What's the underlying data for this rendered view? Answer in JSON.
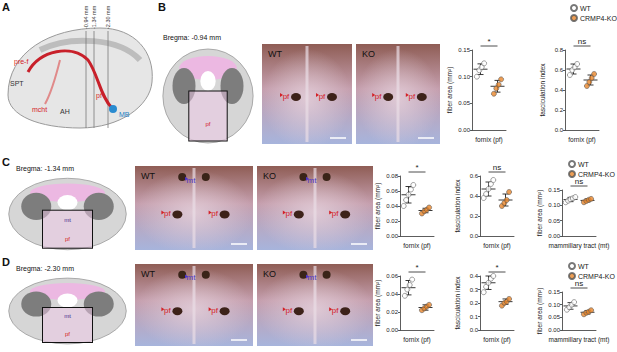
{
  "figure": {
    "panel_a": {
      "letter": "A",
      "sections": [
        "-0.94 mm",
        "-1.34 mm",
        "-2.30 mm"
      ],
      "labels": [
        {
          "text": "pre-f",
          "color": "#d42027"
        },
        {
          "text": "SPT",
          "color": "#333333"
        },
        {
          "text": "mcht",
          "color": "#d42027"
        },
        {
          "text": "AH",
          "color": "#333333"
        },
        {
          "text": "pf",
          "color": "#d42027"
        },
        {
          "text": "MB",
          "color": "#1f7fc4"
        }
      ]
    },
    "rows": [
      {
        "letter": "B",
        "bregma": "Bregma: -0.94 mm",
        "schematic_marks": [
          {
            "text": "pf",
            "color": "#d42027"
          }
        ],
        "images": [
          {
            "label": "WT",
            "marks": [
              {
                "text": "pf",
                "color": "#d42027"
              },
              {
                "text": "pf",
                "color": "#d42027"
              }
            ]
          },
          {
            "label": "KO",
            "marks": [
              {
                "text": "pf",
                "color": "#d42027"
              },
              {
                "text": "pf",
                "color": "#d42027"
              }
            ]
          }
        ]
      },
      {
        "letter": "C",
        "bregma": "Bregma: -1.34 mm",
        "schematic_marks": [
          {
            "text": "mt",
            "color": "#3b2a8c"
          },
          {
            "text": "pf",
            "color": "#d42027"
          }
        ],
        "images": [
          {
            "label": "WT",
            "marks": [
              {
                "text": "mt",
                "color": "#4b34c8"
              },
              {
                "text": "pf",
                "color": "#d42027"
              },
              {
                "text": "pf",
                "color": "#d42027"
              }
            ]
          },
          {
            "label": "KO",
            "marks": [
              {
                "text": "mt",
                "color": "#4b34c8"
              },
              {
                "text": "pf",
                "color": "#d42027"
              },
              {
                "text": "pf",
                "color": "#d42027"
              }
            ]
          }
        ]
      },
      {
        "letter": "D",
        "bregma": "Bregma: -2.30 mm",
        "schematic_marks": [
          {
            "text": "mt",
            "color": "#3b2a8c"
          },
          {
            "text": "pf",
            "color": "#d42027"
          }
        ],
        "images": [
          {
            "label": "WT",
            "marks": [
              {
                "text": "mt",
                "color": "#4b34c8"
              },
              {
                "text": "pf",
                "color": "#d42027"
              },
              {
                "text": "pf",
                "color": "#d42027"
              }
            ]
          },
          {
            "label": "KO",
            "marks": [
              {
                "text": "mt",
                "color": "#4b34c8"
              },
              {
                "text": "pf",
                "color": "#d42027"
              },
              {
                "text": "pf",
                "color": "#d42027"
              }
            ]
          }
        ]
      }
    ]
  },
  "chart_data": [
    {
      "type": "scatter",
      "xlabel": "fornix (pf)",
      "ylabel": "fiber area (mm²)",
      "annotation": "*",
      "ylim": [
        0,
        0.15
      ],
      "yticks": [
        {
          "value": 0,
          "label": "0.00"
        },
        0.05,
        {
          "value": 0.1,
          "label": "0.10"
        },
        0.15
      ],
      "grid": false,
      "tick_labels": "y",
      "marker": "circle",
      "series": [
        {
          "name": "WT",
          "color": "#ffffff",
          "values": [
            0.1,
            0.112,
            0.118,
            0.125
          ],
          "mean": 0.114,
          "sd": 0.01
        },
        {
          "name": "CRMP4-KO",
          "color": "#e8862b",
          "values": [
            0.068,
            0.078,
            0.085,
            0.095
          ],
          "mean": 0.082,
          "sd": 0.011
        }
      ]
    },
    {
      "type": "scatter",
      "xlabel": "fornix (pf)",
      "ylabel": "fasciculation index",
      "annotation": "ns",
      "ylim": [
        0,
        0.8
      ],
      "yticks": [
        {
          "value": 0,
          "label": "0.0"
        },
        0.2,
        0.4,
        0.6,
        0.8
      ],
      "grid": false,
      "tick_labels": "y",
      "marker": "circle",
      "legend": "upper right",
      "series": [
        {
          "name": "WT",
          "color": "#ffffff",
          "values": [
            0.55,
            0.6,
            0.63,
            0.66
          ],
          "mean": 0.61,
          "sd": 0.05
        },
        {
          "name": "CRMP4-KO",
          "color": "#e8862b",
          "values": [
            0.44,
            0.48,
            0.52,
            0.56
          ],
          "mean": 0.5,
          "sd": 0.05
        }
      ]
    },
    {
      "type": "scatter",
      "xlabel": "fornix (pf)",
      "ylabel": "fiber area (mm²)",
      "annotation": "*",
      "ylim": [
        0,
        0.08
      ],
      "yticks": [
        {
          "value": 0,
          "label": "0.00"
        },
        0.02,
        0.04,
        0.06,
        0.08
      ],
      "grid": false,
      "tick_labels": "y",
      "marker": "circle",
      "series": [
        {
          "name": "WT",
          "color": "#ffffff",
          "values": [
            0.04,
            0.048,
            0.055,
            0.062,
            0.068
          ],
          "mean": 0.055,
          "sd": 0.011
        },
        {
          "name": "CRMP4-KO",
          "color": "#e8862b",
          "values": [
            0.03,
            0.033,
            0.035,
            0.038
          ],
          "mean": 0.034,
          "sd": 0.003
        }
      ]
    },
    {
      "type": "scatter",
      "xlabel": "fornix (pf)",
      "ylabel": "fasciculation index",
      "annotation": "ns",
      "ylim": [
        0,
        0.6
      ],
      "yticks": [
        {
          "value": 0,
          "label": "0.0"
        },
        0.2,
        0.4,
        0.6
      ],
      "grid": false,
      "tick_labels": "y",
      "marker": "circle",
      "series": [
        {
          "name": "WT",
          "color": "#ffffff",
          "values": [
            0.38,
            0.42,
            0.47,
            0.52,
            0.56
          ],
          "mean": 0.47,
          "sd": 0.07
        },
        {
          "name": "CRMP4-KO",
          "color": "#e8862b",
          "values": [
            0.3,
            0.33,
            0.36,
            0.44
          ],
          "mean": 0.36,
          "sd": 0.06
        }
      ]
    },
    {
      "type": "scatter",
      "xlabel": "mammillary tract (mt)",
      "ylabel": "fiber area (mm²)",
      "annotation": "ns",
      "ylim": [
        0,
        0.15
      ],
      "yticks": [
        {
          "value": 0,
          "label": "0.00"
        },
        0.05,
        {
          "value": 0.1,
          "label": "0.10"
        },
        0.15
      ],
      "grid": false,
      "tick_labels": "y",
      "marker": "circle",
      "legend": "upper right",
      "series": [
        {
          "name": "WT",
          "color": "#ffffff",
          "values": [
            0.11,
            0.115,
            0.12,
            0.123,
            0.127
          ],
          "mean": 0.119,
          "sd": 0.007
        },
        {
          "name": "CRMP4-KO",
          "color": "#e8862b",
          "values": [
            0.11,
            0.114,
            0.118,
            0.121
          ],
          "mean": 0.116,
          "sd": 0.005
        }
      ]
    },
    {
      "type": "scatter",
      "xlabel": "fornix (pf)",
      "ylabel": "fiber area (mm²)",
      "annotation": "*",
      "ylim": [
        0,
        0.06
      ],
      "yticks": [
        {
          "value": 0,
          "label": "0.00"
        },
        0.02,
        0.04,
        0.06
      ],
      "grid": false,
      "tick_labels": "y",
      "marker": "circle",
      "series": [
        {
          "name": "WT",
          "color": "#ffffff",
          "values": [
            0.038,
            0.045,
            0.05,
            0.056
          ],
          "mean": 0.047,
          "sd": 0.008
        },
        {
          "name": "CRMP4-KO",
          "color": "#e8862b",
          "values": [
            0.022,
            0.024,
            0.026,
            0.028
          ],
          "mean": 0.025,
          "sd": 0.003
        }
      ]
    },
    {
      "type": "scatter",
      "xlabel": "fornix (pf)",
      "ylabel": "fasciculation index",
      "annotation": "*",
      "ylim": [
        0,
        0.4
      ],
      "yticks": [
        {
          "value": 0,
          "label": "0.0"
        },
        0.1,
        0.2,
        0.3,
        0.4
      ],
      "grid": false,
      "tick_labels": "y",
      "marker": "circle",
      "series": [
        {
          "name": "WT",
          "color": "#ffffff",
          "values": [
            0.28,
            0.32,
            0.35,
            0.38,
            0.4
          ],
          "mean": 0.35,
          "sd": 0.05
        },
        {
          "name": "CRMP4-KO",
          "color": "#e8862b",
          "values": [
            0.18,
            0.2,
            0.21,
            0.23
          ],
          "mean": 0.21,
          "sd": 0.02
        }
      ]
    },
    {
      "type": "scatter",
      "xlabel": "mammillary tract (mt)",
      "ylabel": "fiber area (mm²)",
      "annotation": "ns",
      "ylim": [
        0,
        0.15
      ],
      "yticks": [
        {
          "value": 0,
          "label": "0.00"
        },
        0.05,
        {
          "value": 0.1,
          "label": "0.10"
        },
        0.15
      ],
      "grid": false,
      "tick_labels": "y",
      "marker": "circle",
      "legend": "upper right",
      "series": [
        {
          "name": "WT",
          "color": "#ffffff",
          "values": [
            0.08,
            0.09,
            0.1,
            0.11
          ],
          "mean": 0.095,
          "sd": 0.013
        },
        {
          "name": "CRMP4-KO",
          "color": "#e8862b",
          "values": [
            0.062,
            0.068,
            0.072,
            0.078
          ],
          "mean": 0.07,
          "sd": 0.007
        }
      ]
    }
  ]
}
